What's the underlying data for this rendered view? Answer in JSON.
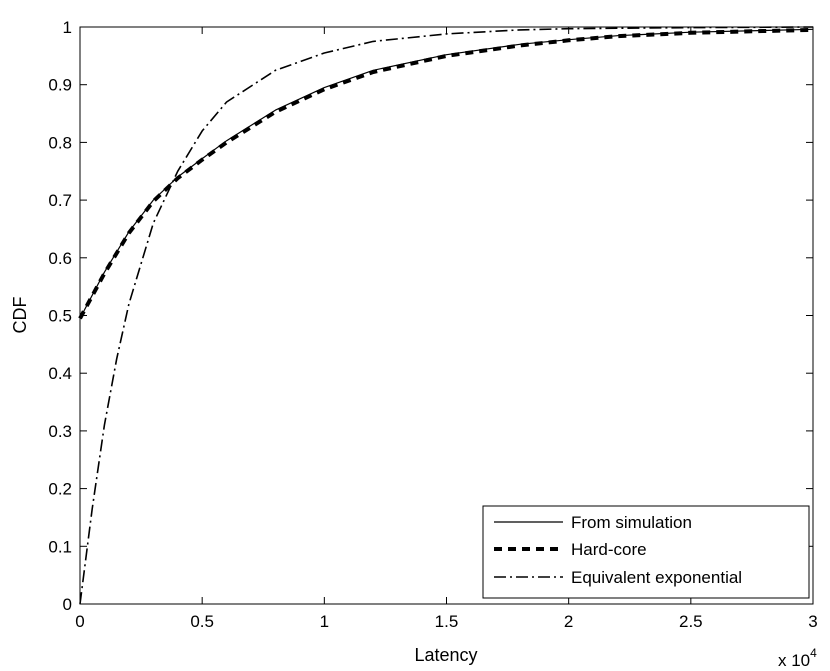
{
  "chart_data": {
    "type": "line",
    "xlabel": "Latency",
    "ylabel": "CDF",
    "x_multiplier_label": {
      "base": "x 10",
      "exponent": "4"
    },
    "xlim": [
      0,
      3
    ],
    "ylim": [
      0,
      1
    ],
    "x_ticks": [
      0,
      0.5,
      1,
      1.5,
      2,
      2.5,
      3
    ],
    "x_tick_labels": [
      "0",
      "0.5",
      "1",
      "1.5",
      "2",
      "2.5",
      "3"
    ],
    "y_ticks": [
      0,
      0.1,
      0.2,
      0.3,
      0.4,
      0.5,
      0.6,
      0.7,
      0.8,
      0.9,
      1
    ],
    "y_tick_labels": [
      "0",
      "0.1",
      "0.2",
      "0.3",
      "0.4",
      "0.5",
      "0.6",
      "0.7",
      "0.8",
      "0.9",
      "1"
    ],
    "grid": false,
    "legend_position": "bottom-right",
    "series": [
      {
        "name": "From simulation",
        "style": "solid",
        "color": "#000000",
        "x": [
          0,
          0.1,
          0.2,
          0.3,
          0.4,
          0.5,
          0.6,
          0.8,
          1.0,
          1.2,
          1.5,
          1.8,
          2.0,
          2.2,
          2.5,
          2.8,
          3.0
        ],
        "y": [
          0.495,
          0.575,
          0.645,
          0.7,
          0.74,
          0.772,
          0.803,
          0.856,
          0.895,
          0.925,
          0.952,
          0.97,
          0.978,
          0.985,
          0.991,
          0.994,
          0.996
        ]
      },
      {
        "name": "Hard-core",
        "style": "dashed-thick",
        "color": "#000000",
        "x": [
          0,
          0.1,
          0.2,
          0.3,
          0.4,
          0.5,
          0.6,
          0.8,
          1.0,
          1.2,
          1.5,
          1.8,
          2.0,
          2.2,
          2.5,
          2.8,
          3.0
        ],
        "y": [
          0.495,
          0.573,
          0.643,
          0.698,
          0.738,
          0.77,
          0.8,
          0.853,
          0.892,
          0.922,
          0.95,
          0.968,
          0.977,
          0.984,
          0.99,
          0.993,
          0.995
        ]
      },
      {
        "name": "Equivalent exponential",
        "style": "dash-dot",
        "color": "#000000",
        "x": [
          0,
          0.05,
          0.1,
          0.15,
          0.2,
          0.3,
          0.4,
          0.5,
          0.6,
          0.8,
          1.0,
          1.2,
          1.5,
          1.8,
          2.0,
          2.5,
          3.0
        ],
        "y": [
          0.0,
          0.165,
          0.31,
          0.425,
          0.52,
          0.66,
          0.75,
          0.82,
          0.87,
          0.925,
          0.955,
          0.975,
          0.988,
          0.995,
          0.997,
          0.999,
          1.0
        ]
      }
    ]
  }
}
